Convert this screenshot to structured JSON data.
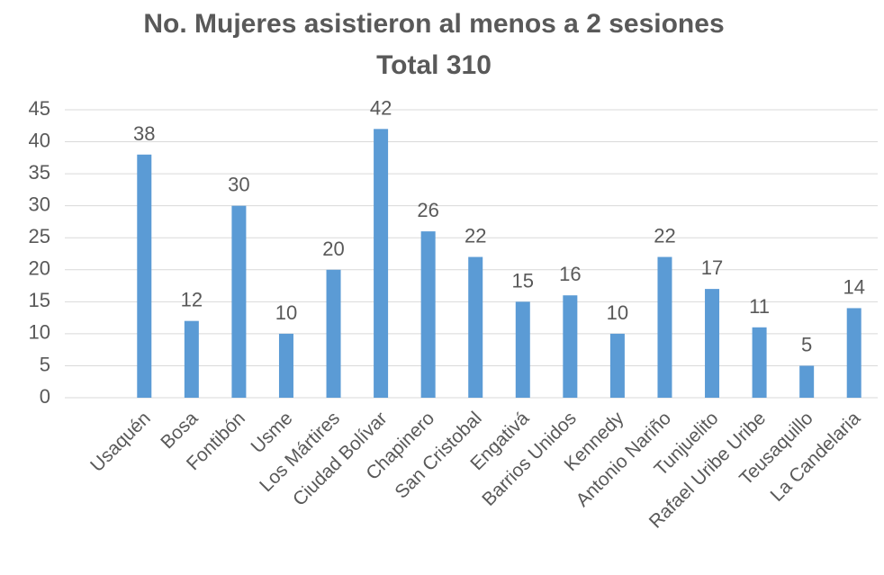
{
  "chart_data": {
    "type": "bar",
    "title": "No. Mujeres asistieron al menos a 2 sesiones",
    "subtitle": "Total 310",
    "categories": [
      "Usaquén",
      "Bosa",
      "Fontibón",
      "Usme",
      "Los Mártires",
      "Ciudad Bolívar",
      "Chapinero",
      "San Cristobal",
      "Engativá",
      "Barrios Unidos",
      "Kennedy",
      "Antonio Nariño",
      "Tunjuelito",
      "Rafael Uribe Uribe",
      "Teusaquillo",
      "La Candelaria"
    ],
    "values": [
      38,
      12,
      30,
      10,
      20,
      42,
      26,
      22,
      15,
      16,
      10,
      22,
      17,
      11,
      5,
      14
    ],
    "color": "#5b9bd5",
    "ylim": [
      0,
      45
    ],
    "yticks": [
      0,
      5,
      10,
      15,
      20,
      25,
      30,
      35,
      40,
      45
    ],
    "grid": true
  }
}
